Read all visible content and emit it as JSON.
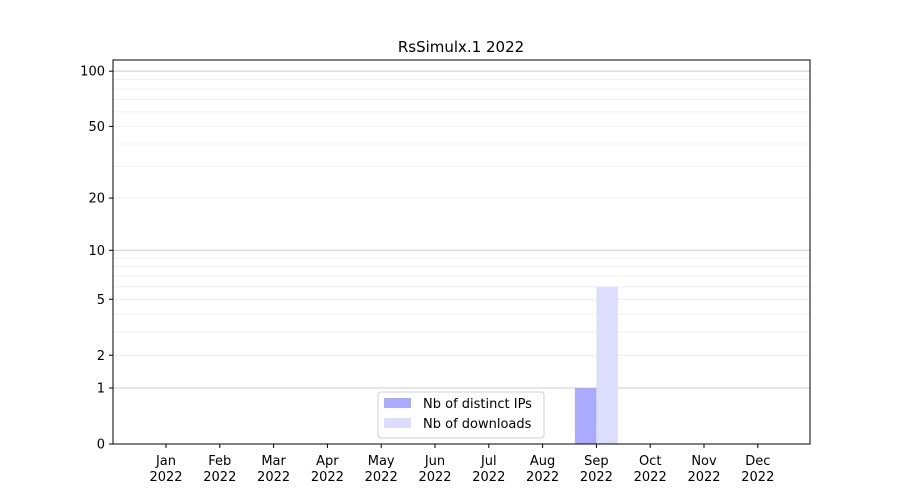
{
  "chart_data": {
    "type": "bar",
    "title": "RsSimulx.1 2022",
    "xlabel": "",
    "ylabel": "",
    "categories": [
      "Jan\n2022",
      "Feb\n2022",
      "Mar\n2022",
      "Apr\n2022",
      "May\n2022",
      "Jun\n2022",
      "Jul\n2022",
      "Aug\n2022",
      "Sep\n2022",
      "Oct\n2022",
      "Nov\n2022",
      "Dec\n2022"
    ],
    "series": [
      {
        "name": "Nb of distinct IPs",
        "color": "#aaaaff",
        "values": [
          0,
          0,
          0,
          0,
          0,
          0,
          0,
          0,
          1,
          0,
          0,
          0
        ]
      },
      {
        "name": "Nb of downloads",
        "color": "#ddddff",
        "values": [
          0,
          0,
          0,
          0,
          0,
          0,
          0,
          0,
          6,
          0,
          0,
          0
        ]
      }
    ],
    "yscale": "log(1+y)",
    "ylim": [
      0,
      115
    ],
    "yticks": [
      0,
      1,
      2,
      5,
      10,
      20,
      50,
      100
    ],
    "grid": true,
    "legend": "lower-center"
  }
}
